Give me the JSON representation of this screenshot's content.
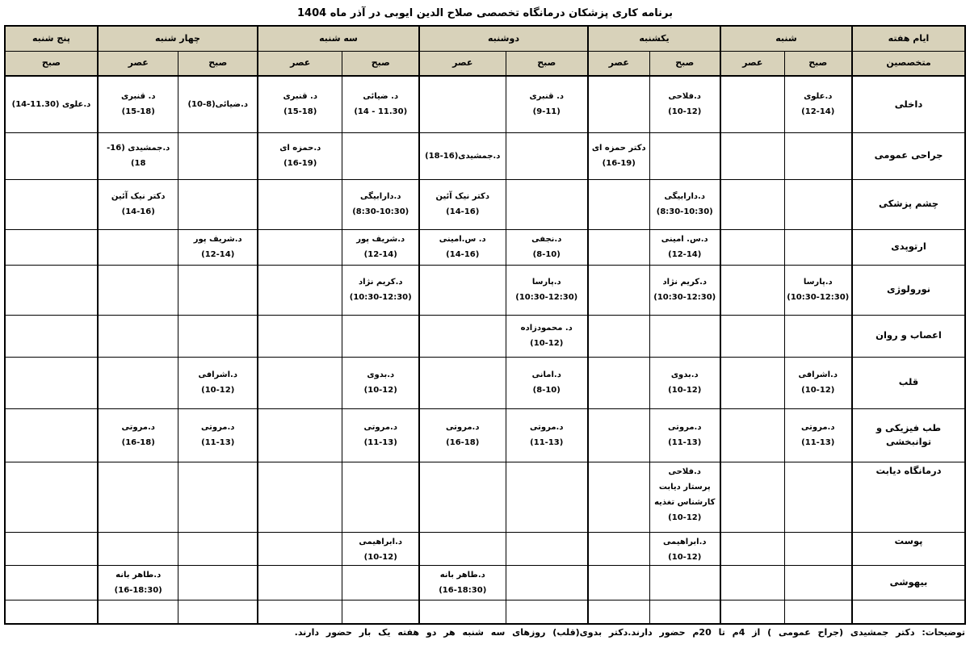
{
  "title": "برنامه کاری پزشکان درمانگاه تخصصی صلاح الدین ایوبی در آذر ماه 1404",
  "header": {
    "days_label": "ایام هفته",
    "specialists_label": "متخصصین",
    "morning": "صبح",
    "evening": "عصر",
    "days": [
      {
        "name": "شنبه"
      },
      {
        "name": "یکشنبه"
      },
      {
        "name": "دوشنبه"
      },
      {
        "name": "سه شنبه"
      },
      {
        "name": "چهار شنبه"
      },
      {
        "name": "پنج شنبه"
      }
    ]
  },
  "rows": [
    {
      "specialty": "داخلی",
      "cells": [
        "د.علوی\n(12-14)",
        "",
        "د.فلاحی\n(10-12)",
        "",
        "د. قنبری\n(9-11)",
        "",
        "د. ضیائی\n(11.30 - 14)",
        "د. قنبری\n(15-18)",
        "د.ضیائی(8-10)",
        "د. قنبری\n(15-18)",
        "د.علوی (11.30-14)"
      ]
    },
    {
      "specialty": "جراحی عمومی",
      "cells": [
        "",
        "",
        "",
        "دکتر حمزه ای\n(16-19)",
        "",
        "د.جمشیدی(16-18)",
        "",
        "د.حمزه ای\n(16-19)",
        "",
        "د.جمشیدی (16-18)",
        ""
      ]
    },
    {
      "specialty": "چشم پزشکی",
      "cells": [
        "",
        "",
        "د.دارابیگی\n(8:30-10:30)",
        "",
        "",
        "دکتر نیک آئین\n(14-16)",
        "د.دارابیگی\n(8:30-10:30)",
        "",
        "",
        "دکتر نیک آئین\n(14-16)",
        ""
      ]
    },
    {
      "specialty": "ارتوپدی",
      "cells": [
        "",
        "",
        "د.س. امینی\n(12-14)",
        "",
        "د.نجفی\n(8-10)",
        "د. س.امینی\n(14-16)",
        "د.شریف پور\n(12-14)",
        "",
        "د.شریف پور\n(12-14)",
        "",
        ""
      ]
    },
    {
      "specialty": "نورولوژی",
      "cells": [
        "د.پارسا\n(10:30-12:30)",
        "",
        "د.کریم نژاد\n(10:30-12:30)",
        "",
        "د.پارسا\n(10:30-12:30)",
        "",
        "د.کریم نژاد\n(10:30-12:30)",
        "",
        "",
        "",
        ""
      ]
    },
    {
      "specialty": "اعصاب و روان",
      "cells": [
        "",
        "",
        "",
        "",
        "د. محمودزاده\n(10-12)",
        "",
        "",
        "",
        "",
        "",
        ""
      ]
    },
    {
      "specialty": "قلب",
      "cells": [
        "د.اشرافی\n(10-12)",
        "",
        "د.بدوی\n(10-12)",
        "",
        "د.امانی\n(8-10)",
        "",
        "د.بدوی\n(10-12)",
        "",
        "د.اشرافی\n(10-12)",
        "",
        ""
      ]
    },
    {
      "specialty": "طب فیزیکی و\nتوانبخشی",
      "cells": [
        "د.مروتی\n(11-13)",
        "",
        "د.مروتی\n(11-13)",
        "",
        "د.مروتی\n(11-13)",
        "د.مروتی\n(16-18)",
        "د.مروتی\n(11-13)",
        "",
        "د.مروتی\n(11-13)",
        "د.مروتی\n(16-18)",
        ""
      ]
    },
    {
      "specialty": "درمانگاه دیابت",
      "cells": [
        "",
        "",
        "د.فلاحی\nپرستار دیابت\nکارشناس تغذیه\n(10-12)",
        "",
        "",
        "",
        "",
        "",
        "",
        "",
        ""
      ]
    },
    {
      "specialty": "پوست",
      "cells": [
        "",
        "",
        "د.ابراهیمی\n(10-12)",
        "",
        "",
        "",
        "د.ابراهیمی\n(10-12)",
        "",
        "",
        "",
        ""
      ]
    },
    {
      "specialty": "بیهوشی",
      "cells": [
        "",
        "",
        "",
        "",
        "",
        "د.طاهر بانه\n(16-18:30)",
        "",
        "",
        "",
        "د.طاهر بانه\n(16-18:30)",
        ""
      ]
    },
    {
      "specialty": "",
      "cells": [
        "",
        "",
        "",
        "",
        "",
        "",
        "",
        "",
        "",
        "",
        ""
      ]
    }
  ],
  "note": "توضیحات: دکتر جمشیدی (جراح عمومی ) از 4م تا 20م حضور دارند.دکتر بدوی(قلب) روزهای سه شنبه هر دو هفته یک بار حضور دارند."
}
